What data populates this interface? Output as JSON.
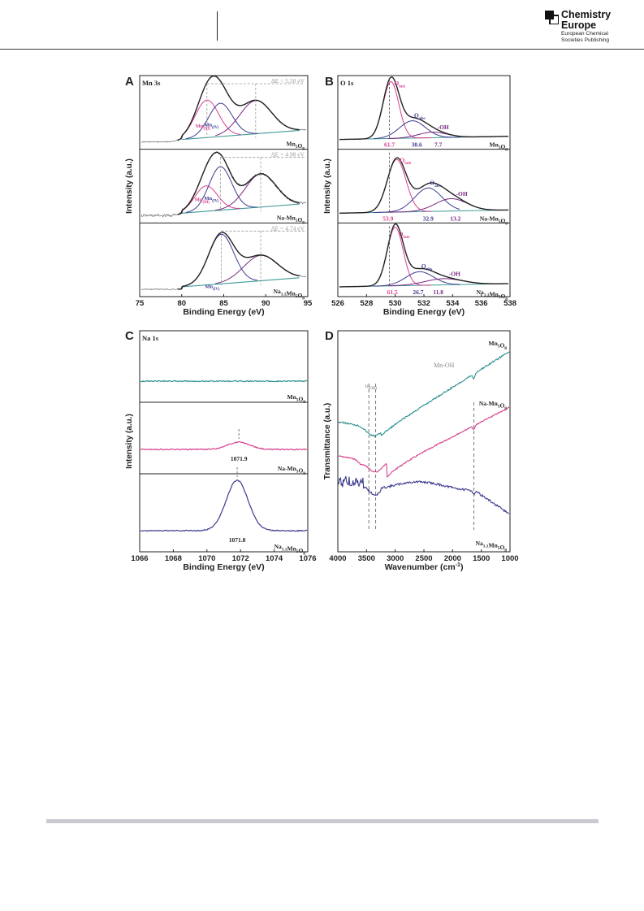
{
  "header": {
    "journal_name_line1": "Chemistry",
    "journal_name_line2": "Europe",
    "publisher_line1": "European Chemical",
    "publisher_line2": "Societies Publishing"
  },
  "colors": {
    "black": "#2b2b2b",
    "pink": "#d6408f",
    "navy": "#3b3b8f",
    "teal": "#3f9a98",
    "purple": "#7a2a82",
    "tealcurve": "#2e9090"
  },
  "panels": {
    "A": {
      "letter": "A",
      "title": "Mn 3s",
      "xlabel": "Binding Energy (eV)",
      "ylabel": "Intensity (a.u.)",
      "xticks": [
        "75",
        "80",
        "85",
        "90",
        "95"
      ],
      "sub": [
        {
          "sample_html": "Mn<sub>5</sub>O<sub>8</sub>",
          "delta": "ΔE = 5.50 eV",
          "label1": "Mn(III)",
          "label2": "Mn(IV)"
        },
        {
          "sample_html": "Na-Mn<sub>5</sub>O<sub>8</sub>",
          "delta": "ΔE = 4.98 eV",
          "label1": "Mn(III)",
          "label2": "Mn(IV)"
        },
        {
          "sample_html": "Na<sub>1.1</sub>Mn<sub>5</sub>O<sub>8</sub>",
          "delta": "ΔE = 4.74 eV",
          "label1": "",
          "label2": "Mn(IV)"
        }
      ]
    },
    "B": {
      "letter": "B",
      "title": "O 1s",
      "xlabel": "Binding Energy (eV)",
      "ylabel": "Intensity (a.u.)",
      "xticks": [
        "526",
        "528",
        "530",
        "532",
        "534",
        "536",
        "538"
      ],
      "sub": [
        {
          "sample": "Mn5O8",
          "values": [
            "61.7",
            "30.6",
            "7.7"
          ]
        },
        {
          "sample": "Na-Mn5O8",
          "values": [
            "53.9",
            "32.9",
            "13.2"
          ]
        },
        {
          "sample": "Na1.1Mn5O8",
          "values": [
            "61.5",
            "26.7",
            "11.8"
          ]
        }
      ],
      "peak_labels": [
        "Olatt",
        "Oabs",
        "-OH"
      ]
    },
    "C": {
      "letter": "C",
      "title": "Na 1s",
      "xlabel": "Binding Energy (eV)",
      "ylabel": "Intensity (a.u.)",
      "xticks": [
        "1066",
        "1068",
        "1070",
        "1072",
        "1074",
        "1076"
      ],
      "sub": [
        {
          "sample": "Mn5O8",
          "peak": ""
        },
        {
          "sample": "Na-Mn5O8",
          "peak": "1071.9"
        },
        {
          "sample": "Na1.1Mn5O8",
          "peak": "1071.8"
        }
      ]
    },
    "D": {
      "letter": "D",
      "xlabel": "Wavenumber (cm-1)",
      "ylabel": "Transmittance (a.u.)",
      "xticks": [
        "4000",
        "3500",
        "3000",
        "2500",
        "2000",
        "1500",
        "1000"
      ],
      "annotation_mnoh": "Mn-OH",
      "annotation_voh": "υ(OH)",
      "series": [
        "Mn5O8",
        "Na-Mn5O8",
        "Na1.1Mn5O8"
      ]
    }
  }
}
